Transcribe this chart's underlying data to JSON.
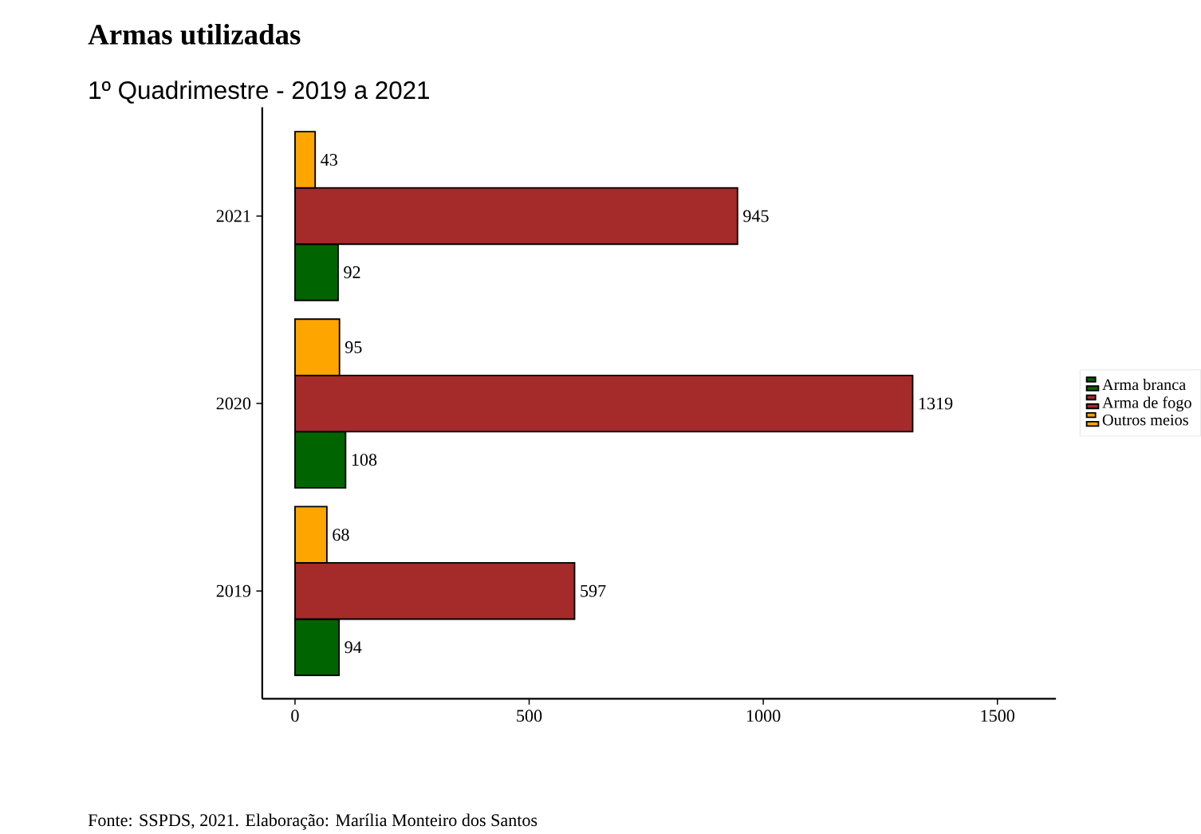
{
  "chart_data": {
    "type": "bar",
    "orientation": "horizontal",
    "title": "Armas utilizadas",
    "subtitle": "1º Quadrimestre - 2019 a 2021",
    "categories": [
      "2021",
      "2020",
      "2019"
    ],
    "series": [
      {
        "name": "Arma branca",
        "color": "#006400",
        "values": [
          92,
          108,
          94
        ]
      },
      {
        "name": "Arma de fogo",
        "color": "#a52a2a",
        "values": [
          945,
          1319,
          597
        ]
      },
      {
        "name": "Outros meios",
        "color": "#ffa500",
        "values": [
          43,
          95,
          68
        ]
      }
    ],
    "xlim": [
      -70,
      1625
    ],
    "xticks": [
      0,
      500,
      1000,
      1500
    ],
    "legend": "right",
    "data_labels": true,
    "annotations": [
      "Fonte: SSPDS, 2021. Elaboração: Marília Monteiro dos Santos"
    ]
  }
}
